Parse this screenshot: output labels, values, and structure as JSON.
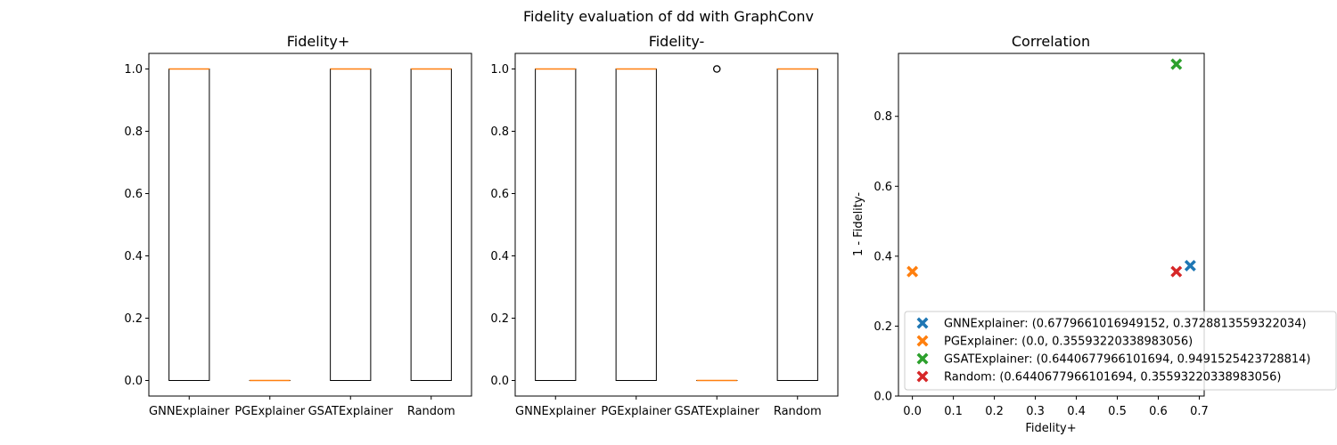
{
  "suptitle": "Fidelity evaluation of dd with GraphConv",
  "chart_data": [
    {
      "type": "boxplot",
      "title": "Fidelity+",
      "categories": [
        "GNNExplainer",
        "PGExplainer",
        "GSATExplainer",
        "Random"
      ],
      "ylim": [
        -0.05,
        1.05
      ],
      "yticks": [
        0.0,
        0.2,
        0.4,
        0.6,
        0.8,
        1.0
      ],
      "ytick_labels": [
        "0.0",
        "0.2",
        "0.4",
        "0.6",
        "0.8",
        "1.0"
      ],
      "boxes": [
        {
          "q1": 0,
          "median": 1,
          "q3": 1,
          "whislo": 0,
          "whishi": 1,
          "fliers": []
        },
        {
          "q1": 0,
          "median": 0,
          "q3": 0,
          "whislo": 0,
          "whishi": 0,
          "fliers": []
        },
        {
          "q1": 0,
          "median": 1,
          "q3": 1,
          "whislo": 0,
          "whishi": 1,
          "fliers": []
        },
        {
          "q1": 0,
          "median": 1,
          "q3": 1,
          "whislo": 0,
          "whishi": 1,
          "fliers": []
        }
      ]
    },
    {
      "type": "boxplot",
      "title": "Fidelity-",
      "categories": [
        "GNNExplainer",
        "PGExplainer",
        "GSATExplainer",
        "Random"
      ],
      "ylim": [
        -0.05,
        1.05
      ],
      "yticks": [
        0.0,
        0.2,
        0.4,
        0.6,
        0.8,
        1.0
      ],
      "ytick_labels": [
        "0.0",
        "0.2",
        "0.4",
        "0.6",
        "0.8",
        "1.0"
      ],
      "boxes": [
        {
          "q1": 0,
          "median": 1,
          "q3": 1,
          "whislo": 0,
          "whishi": 1,
          "fliers": []
        },
        {
          "q1": 0,
          "median": 1,
          "q3": 1,
          "whislo": 0,
          "whishi": 1,
          "fliers": []
        },
        {
          "q1": 0,
          "median": 0,
          "q3": 0,
          "whislo": 0,
          "whishi": 0,
          "fliers": [
            1
          ]
        },
        {
          "q1": 0,
          "median": 1,
          "q3": 1,
          "whislo": 0,
          "whishi": 1,
          "fliers": []
        }
      ]
    },
    {
      "type": "scatter",
      "title": "Correlation",
      "xlabel": "Fidelity+",
      "ylabel": "1 - Fidelity-",
      "xlim": [
        -0.034,
        0.712
      ],
      "ylim": [
        0.0,
        0.98
      ],
      "xticks": [
        0.0,
        0.1,
        0.2,
        0.3,
        0.4,
        0.5,
        0.6,
        0.7
      ],
      "xtick_labels": [
        "0.0",
        "0.1",
        "0.2",
        "0.3",
        "0.4",
        "0.5",
        "0.6",
        "0.7"
      ],
      "yticks": [
        0.0,
        0.2,
        0.4,
        0.6,
        0.8
      ],
      "ytick_labels": [
        "0.0",
        "0.2",
        "0.4",
        "0.6",
        "0.8"
      ],
      "legend_position": "lower-right",
      "series": [
        {
          "name": "GNNExplainer: (0.6779661016949152, 0.3728813559322034)",
          "x": 0.6779661016949152,
          "y": 0.3728813559322034,
          "color": "#1f77b4"
        },
        {
          "name": "PGExplainer: (0.0, 0.35593220338983056)",
          "x": 0.0,
          "y": 0.35593220338983056,
          "color": "#ff7f0e"
        },
        {
          "name": "GSATExplainer: (0.6440677966101694, 0.9491525423728814)",
          "x": 0.6440677966101694,
          "y": 0.9491525423728814,
          "color": "#2ca02c"
        },
        {
          "name": "Random: (0.6440677966101694, 0.35593220338983056)",
          "x": 0.6440677966101694,
          "y": 0.35593220338983056,
          "color": "#d62728"
        }
      ]
    }
  ],
  "style": {
    "median_color": "#ff7f0e",
    "box_color": "#000000"
  }
}
